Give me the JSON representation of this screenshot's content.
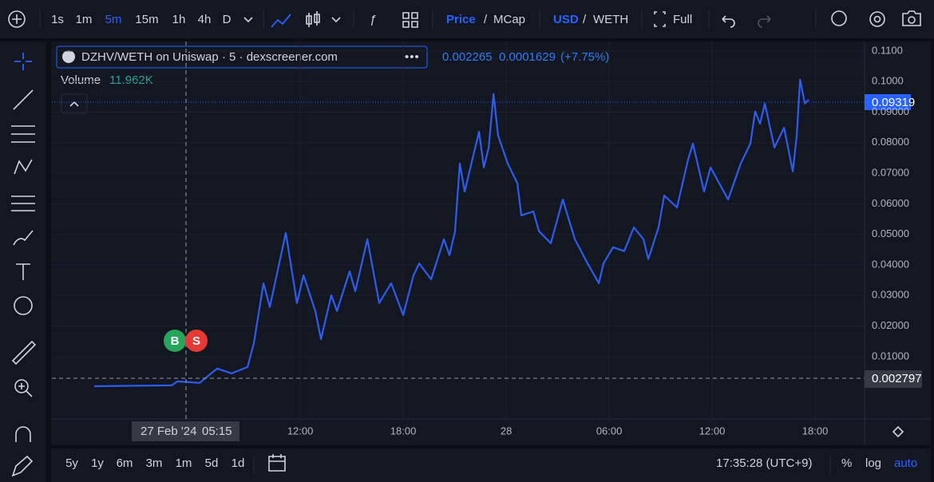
{
  "toolbar": {
    "intervals": [
      "1s",
      "1m",
      "5m",
      "15m",
      "1h",
      "4h",
      "D"
    ],
    "active_interval": "5m",
    "price": "Price",
    "sep1": "/",
    "mcap": "MCap",
    "usd": "USD",
    "sep2": "/",
    "weth": "WETH",
    "full": "Full"
  },
  "legend": {
    "symbol": "DZHV/WETH on Uniswap · 5 · dexscreener.com",
    "price": "0.002265",
    "change": "0.0001629",
    "percent": "(+7.75%)",
    "volume_label": "Volume",
    "volume": "11.962K"
  },
  "markers": {
    "buy": "B",
    "sell": "S"
  },
  "price_tags": {
    "last": "0.09319",
    "cursor": "0.002797"
  },
  "crosshair": {
    "date": "27 Feb '24",
    "time": "05:15"
  },
  "chart_data": {
    "type": "line",
    "color": "#2f5cf0",
    "grid": true,
    "x": [
      0.0,
      4.51,
      4.84,
      6.14,
      7.16,
      8.0,
      8.93,
      9.3,
      9.86,
      10.23,
      10.88,
      11.16,
      11.81,
      12.19,
      12.88,
      13.21,
      13.81,
      14.14,
      14.88,
      15.21,
      15.91,
      16.6,
      17.3,
      18.0,
      18.6,
      18.93,
      19.63,
      20.37,
      20.7,
      21.02,
      21.3,
      21.58,
      22.14,
      22.42,
      22.7,
      22.98,
      23.26,
      23.53,
      24.09,
      24.65,
      24.88,
      25.58,
      25.91,
      26.6,
      27.3,
      28.0,
      28.74,
      29.4,
      29.67,
      30.23,
      30.88,
      31.44,
      32.0,
      32.28,
      32.88,
      33.21,
      33.95,
      34.6,
      34.88,
      35.53,
      35.91,
      36.93,
      37.67,
      38.23,
      38.51,
      38.79,
      39.07,
      39.63,
      40.19,
      40.7,
      40.93,
      41.12,
      41.4,
      41.63
    ],
    "values": [
      0.0003,
      0.0006,
      0.0019,
      0.0014,
      0.0061,
      0.0045,
      0.0066,
      0.0144,
      0.034,
      0.0262,
      0.0432,
      0.0505,
      0.0275,
      0.0366,
      0.0249,
      0.0157,
      0.0301,
      0.0249,
      0.0379,
      0.0314,
      0.0484,
      0.0275,
      0.034,
      0.0236,
      0.0366,
      0.0405,
      0.0353,
      0.0484,
      0.0432,
      0.051,
      0.0732,
      0.064,
      0.0771,
      0.0836,
      0.0719,
      0.0784,
      0.0959,
      0.0823,
      0.0732,
      0.0667,
      0.0562,
      0.0575,
      0.051,
      0.0471,
      0.0614,
      0.0484,
      0.0405,
      0.034,
      0.0405,
      0.0458,
      0.0445,
      0.0523,
      0.0484,
      0.0419,
      0.0523,
      0.0627,
      0.0588,
      0.0745,
      0.0797,
      0.064,
      0.0719,
      0.0614,
      0.0732,
      0.0797,
      0.0902,
      0.0862,
      0.0928,
      0.0784,
      0.0849,
      0.0706,
      0.0823,
      0.1006,
      0.0928,
      0.0941
    ],
    "xlim": [
      -2.47,
      44.88
    ],
    "xticks": [
      {
        "value": 12,
        "label": "12:00"
      },
      {
        "value": 18,
        "label": "18:00"
      },
      {
        "value": 24,
        "label": "28"
      },
      {
        "value": 30,
        "label": "06:00"
      },
      {
        "value": 36,
        "label": "12:00"
      },
      {
        "value": 42,
        "label": "18:00"
      }
    ],
    "ylim": [
      -0.0104,
      0.1131
    ],
    "yticks": [
      {
        "value": 0.11,
        "label": "0.1100"
      },
      {
        "value": 0.1,
        "label": "0.1000"
      },
      {
        "value": 0.09,
        "label": "0.09000"
      },
      {
        "value": 0.08,
        "label": "0.08000"
      },
      {
        "value": 0.07,
        "label": "0.07000"
      },
      {
        "value": 0.06,
        "label": "0.06000"
      },
      {
        "value": 0.05,
        "label": "0.05000"
      },
      {
        "value": 0.04,
        "label": "0.04000"
      },
      {
        "value": 0.03,
        "label": "0.03000"
      },
      {
        "value": 0.02,
        "label": "0.02000"
      },
      {
        "value": 0.01,
        "label": "0.01000"
      }
    ]
  },
  "bottom": {
    "ranges": [
      "5y",
      "1y",
      "6m",
      "3m",
      "1m",
      "5d",
      "1d"
    ],
    "clock": "17:35:28 (UTC+9)",
    "percent": "%",
    "log": "log",
    "auto": "auto"
  }
}
